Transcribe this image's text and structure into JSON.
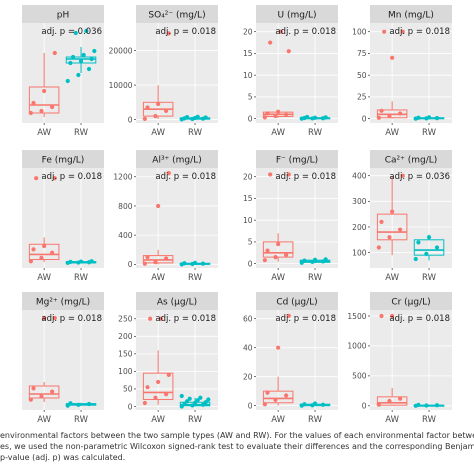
{
  "caption": {
    "line1": "environmental factors between the two sample types (AW and RW). For the values of each environmental factor between the AW and",
    "line2": "es, we used the non-parametric Wilcoxon signed-rank test to evaluate their differences and the corresponding Benjamini and Hochberg",
    "line3": "p-value (adj. p) was calculated."
  },
  "colors": {
    "AW": "#F8766D",
    "RW": "#00BFC4",
    "panel_bg": "#EBEBEB",
    "strip_bg": "#D9D9D9",
    "grid": "#FFFFFF"
  },
  "chart_data": [
    {
      "type": "box",
      "title": "pH",
      "annotation": "adj. p = 0.036",
      "categories": [
        "AW",
        "RW"
      ],
      "yticks": [],
      "ylim": [
        4.5,
        9.5
      ],
      "series": [
        {
          "name": "AW",
          "q1": 5.0,
          "median": 5.4,
          "q3": 6.3,
          "whisker_low": 4.8,
          "whisker_high": 8.0,
          "points": [
            5.0,
            5.1,
            5.3,
            5.5,
            6.1,
            8.0
          ]
        },
        {
          "name": "RW",
          "q1": 7.5,
          "median": 7.7,
          "q3": 7.8,
          "whisker_low": 7.0,
          "whisker_high": 8.3,
          "points": [
            6.6,
            6.9,
            7.2,
            7.5,
            7.6,
            7.7,
            7.8,
            7.9,
            8.1,
            9.0,
            9.1
          ]
        }
      ]
    },
    {
      "type": "box",
      "title": "SO₄²⁻ (mg/L)",
      "annotation": "adj. p = 0.018",
      "categories": [
        "AW",
        "RW"
      ],
      "yticks": [
        0,
        10000,
        20000
      ],
      "ylim": [
        -1000,
        28000
      ],
      "series": [
        {
          "name": "AW",
          "q1": 1000,
          "median": 3000,
          "q3": 5000,
          "whisker_low": 200,
          "whisker_high": 10000,
          "points": [
            200,
            1000,
            2500,
            3500,
            4500,
            25000
          ]
        },
        {
          "name": "RW",
          "q1": 100,
          "median": 300,
          "q3": 500,
          "whisker_low": 0,
          "whisker_high": 800,
          "points": [
            50,
            150,
            250,
            350,
            450,
            600,
            700,
            800
          ]
        }
      ]
    },
    {
      "type": "box",
      "title": "U (mg/L)",
      "annotation": "adj. p = 0.018",
      "categories": [
        "AW",
        "RW"
      ],
      "yticks": [
        0,
        5,
        10,
        15,
        20
      ],
      "ylim": [
        -1,
        22
      ],
      "series": [
        {
          "name": "AW",
          "q1": 0.5,
          "median": 1.0,
          "q3": 1.5,
          "whisker_low": 0.2,
          "whisker_high": 2.0,
          "points": [
            0.3,
            0.6,
            0.9,
            1.2,
            1.6,
            15.5,
            17.5,
            20.0
          ]
        },
        {
          "name": "RW",
          "q1": 0.0,
          "median": 0.1,
          "q3": 0.2,
          "whisker_low": 0.0,
          "whisker_high": 0.4,
          "points": [
            0.0,
            0.05,
            0.1,
            0.15,
            0.2,
            0.3,
            0.4
          ]
        }
      ]
    },
    {
      "type": "box",
      "title": "Mn (mg/L)",
      "annotation": "adj. p = 0.018",
      "categories": [
        "AW",
        "RW"
      ],
      "yticks": [
        0,
        25,
        50,
        75,
        100
      ],
      "ylim": [
        -5,
        110
      ],
      "series": [
        {
          "name": "AW",
          "q1": 1,
          "median": 5,
          "q3": 10,
          "whisker_low": 0,
          "whisker_high": 20,
          "points": [
            1,
            3,
            6,
            9,
            70,
            100,
            100
          ]
        },
        {
          "name": "RW",
          "q1": 0,
          "median": 0.5,
          "q3": 1,
          "whisker_low": 0,
          "whisker_high": 2,
          "points": [
            0,
            0.3,
            0.6,
            1,
            1.5
          ]
        }
      ]
    },
    {
      "type": "box",
      "title": "Fe (mg/L)",
      "annotation": "adj. p = 0.018",
      "categories": [
        "AW",
        "RW"
      ],
      "yticks": [],
      "ylim": [
        -30,
        560
      ],
      "series": [
        {
          "name": "AW",
          "q1": 20,
          "median": 50,
          "q3": 110,
          "whisker_low": 5,
          "whisker_high": 150,
          "points": [
            10,
            30,
            60,
            80,
            100,
            500,
            500
          ]
        },
        {
          "name": "RW",
          "q1": 0,
          "median": 3,
          "q3": 8,
          "whisker_low": 0,
          "whisker_high": 15,
          "points": [
            0,
            2,
            4,
            6,
            8,
            10
          ]
        }
      ]
    },
    {
      "type": "box",
      "title": "Al³⁺ (mg/L)",
      "annotation": "adj. p = 0.018",
      "categories": [
        "AW",
        "RW"
      ],
      "yticks": [
        0,
        400,
        800,
        1200
      ],
      "ylim": [
        -50,
        1320
      ],
      "series": [
        {
          "name": "AW",
          "q1": 20,
          "median": 60,
          "q3": 120,
          "whisker_low": 0,
          "whisker_high": 200,
          "points": [
            10,
            30,
            80,
            100,
            800,
            1250
          ]
        },
        {
          "name": "RW",
          "q1": 0,
          "median": 5,
          "q3": 15,
          "whisker_low": 0,
          "whisker_high": 25,
          "points": [
            0,
            5,
            10,
            15,
            20
          ]
        }
      ]
    },
    {
      "type": "box",
      "title": "F⁻ (mg/L)",
      "annotation": "adj. p = 0.018",
      "categories": [
        "AW",
        "RW"
      ],
      "yticks": [
        0,
        5,
        10,
        15,
        20
      ],
      "ylim": [
        -1,
        22
      ],
      "series": [
        {
          "name": "AW",
          "q1": 1.5,
          "median": 2.5,
          "q3": 5.0,
          "whisker_low": 0.5,
          "whisker_high": 7.0,
          "points": [
            0.8,
            1.5,
            2.0,
            3.0,
            4.5,
            20.5,
            20.5
          ]
        },
        {
          "name": "RW",
          "q1": 0.3,
          "median": 0.5,
          "q3": 0.8,
          "whisker_low": 0.1,
          "whisker_high": 1.2,
          "points": [
            0.2,
            0.4,
            0.5,
            0.7,
            0.9,
            1.0
          ]
        }
      ]
    },
    {
      "type": "box",
      "title": "Ca²⁺ (mg/L)",
      "annotation": "adj. p = 0.036",
      "categories": [
        "AW",
        "RW"
      ],
      "yticks": [
        100,
        200,
        300,
        400
      ],
      "ylim": [
        40,
        430
      ],
      "series": [
        {
          "name": "AW",
          "q1": 150,
          "median": 180,
          "q3": 250,
          "whisker_low": 90,
          "whisker_high": 400,
          "points": [
            120,
            160,
            190,
            220,
            260,
            400
          ]
        },
        {
          "name": "RW",
          "q1": 90,
          "median": 110,
          "q3": 150,
          "whisker_low": 70,
          "whisker_high": 170,
          "points": [
            75,
            95,
            120,
            140,
            160
          ]
        }
      ]
    },
    {
      "type": "box",
      "title": "Mg²⁺ (mg/L)",
      "annotation": "adj. p = 0.018",
      "categories": [
        "AW",
        "RW"
      ],
      "yticks": [],
      "ylim": [
        -50,
        1200
      ],
      "series": [
        {
          "name": "AW",
          "q1": 100,
          "median": 150,
          "q3": 250,
          "whisker_low": 50,
          "whisker_high": 300,
          "points": [
            80,
            120,
            180,
            220,
            1100,
            1100
          ]
        },
        {
          "name": "RW",
          "q1": 10,
          "median": 20,
          "q3": 30,
          "whisker_low": 0,
          "whisker_high": 40,
          "points": [
            5,
            15,
            25,
            35
          ]
        }
      ]
    },
    {
      "type": "box",
      "title": "As (μg/L)",
      "annotation": "adj. p = 0.018",
      "categories": [
        "AW",
        "RW"
      ],
      "yticks": [
        0,
        50,
        100,
        150,
        200,
        250
      ],
      "ylim": [
        -10,
        275
      ],
      "series": [
        {
          "name": "AW",
          "q1": 20,
          "median": 40,
          "q3": 95,
          "whisker_low": 5,
          "whisker_high": 160,
          "points": [
            10,
            25,
            35,
            55,
            70,
            90,
            250,
            250
          ]
        },
        {
          "name": "RW",
          "q1": 2,
          "median": 5,
          "q3": 12,
          "whisker_low": 0,
          "whisker_high": 25,
          "points": [
            0,
            3,
            5,
            8,
            10,
            12,
            15,
            18,
            20,
            22,
            25,
            30
          ]
        }
      ]
    },
    {
      "type": "box",
      "title": "Cd (μg/L)",
      "annotation": "adj. p = 0.018",
      "categories": [
        "AW",
        "RW"
      ],
      "yticks": [
        0,
        20,
        40,
        60
      ],
      "ylim": [
        -3,
        66
      ],
      "series": [
        {
          "name": "AW",
          "q1": 2,
          "median": 5,
          "q3": 10,
          "whisker_low": 0,
          "whisker_high": 20,
          "points": [
            1,
            4,
            7,
            9,
            40,
            62
          ]
        },
        {
          "name": "RW",
          "q1": 0,
          "median": 0.5,
          "q3": 1,
          "whisker_low": 0,
          "whisker_high": 2,
          "points": [
            0,
            0.3,
            0.6,
            1,
            1.5
          ]
        }
      ]
    },
    {
      "type": "box",
      "title": "Cr (μg/L)",
      "annotation": "adj. p = 0.018",
      "categories": [
        "AW",
        "RW"
      ],
      "yticks": [
        0,
        500,
        1000,
        1500
      ],
      "ylim": [
        -70,
        1600
      ],
      "series": [
        {
          "name": "AW",
          "q1": 10,
          "median": 50,
          "q3": 150,
          "whisker_low": 0,
          "whisker_high": 300,
          "points": [
            20,
            80,
            120,
            1500,
            1500
          ]
        },
        {
          "name": "RW",
          "q1": 0,
          "median": 5,
          "q3": 10,
          "whisker_low": 0,
          "whisker_high": 20,
          "points": [
            0,
            5,
            10,
            15
          ]
        }
      ]
    }
  ]
}
